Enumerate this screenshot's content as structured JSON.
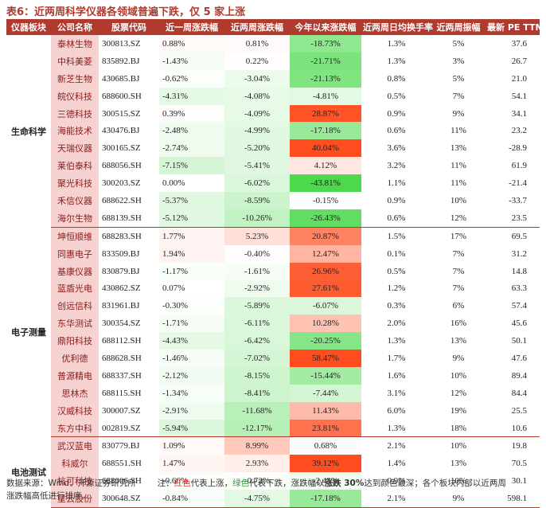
{
  "title": "表6：近两周科学仪器各领域普遍下跌，仅 5 家上涨",
  "headers": [
    "仪器板块",
    "公司名称",
    "股票代码",
    "近一周涨跌幅",
    "近两周涨跌幅",
    "今年以来涨跌幅",
    "近两周日均换手率",
    "近两周振幅",
    "最新 PE TTM"
  ],
  "colors": {
    "header_bg": "#b03a2e",
    "name_bg": "#f6d2d0",
    "up": "#ff4d1f",
    "down": "#4cd94c"
  },
  "groups": [
    {
      "sector": "生命科学",
      "rows": [
        [
          "泰林生物",
          "300813.SZ",
          "0.88%",
          "0.81%",
          "-18.73%",
          "1.3%",
          "5%",
          "37.6"
        ],
        [
          "中科美菱",
          "835892.BJ",
          "-1.43%",
          "0.22%",
          "-21.71%",
          "1.3%",
          "3%",
          "26.7"
        ],
        [
          "新芝生物",
          "430685.BJ",
          "-0.62%",
          "-3.04%",
          "-21.13%",
          "0.8%",
          "5%",
          "21.0"
        ],
        [
          "皖仪科技",
          "688600.SH",
          "-4.31%",
          "-4.08%",
          "-4.81%",
          "0.5%",
          "7%",
          "54.1"
        ],
        [
          "三德科技",
          "300515.SZ",
          "0.39%",
          "-4.09%",
          "28.87%",
          "0.9%",
          "9%",
          "34.1"
        ],
        [
          "海能技术",
          "430476.BJ",
          "-2.48%",
          "-4.99%",
          "-17.18%",
          "0.6%",
          "11%",
          "23.2"
        ],
        [
          "天瑞仪器",
          "300165.SZ",
          "-2.74%",
          "-5.20%",
          "40.04%",
          "3.6%",
          "13%",
          "-28.9"
        ],
        [
          "莱伯泰科",
          "688056.SH",
          "-7.15%",
          "-5.41%",
          "4.12%",
          "3.2%",
          "11%",
          "61.9"
        ],
        [
          "聚光科技",
          "300203.SZ",
          "0.00%",
          "-6.02%",
          "-43.81%",
          "1.1%",
          "11%",
          "-21.4"
        ],
        [
          "禾信仪器",
          "688622.SH",
          "-5.37%",
          "-8.59%",
          "-0.15%",
          "0.9%",
          "10%",
          "-33.7"
        ],
        [
          "海尔生物",
          "688139.SH",
          "-5.12%",
          "-10.26%",
          "-26.43%",
          "0.6%",
          "12%",
          "23.5"
        ]
      ]
    },
    {
      "sector": "电子测量",
      "rows": [
        [
          "坤恒顺维",
          "688283.SH",
          "1.77%",
          "5.23%",
          "20.87%",
          "1.5%",
          "17%",
          "69.5"
        ],
        [
          "同惠电子",
          "833509.BJ",
          "1.94%",
          "-0.40%",
          "12.47%",
          "0.1%",
          "7%",
          "31.2"
        ],
        [
          "基康仪器",
          "830879.BJ",
          "-1.17%",
          "-1.61%",
          "26.96%",
          "0.5%",
          "7%",
          "14.8"
        ],
        [
          "蓝盾光电",
          "430862.SZ",
          "0.07%",
          "-2.92%",
          "27.61%",
          "1.2%",
          "7%",
          "63.3"
        ],
        [
          "创远信科",
          "831961.BJ",
          "-0.30%",
          "-5.89%",
          "-6.07%",
          "0.3%",
          "6%",
          "57.4"
        ],
        [
          "东华测试",
          "300354.SZ",
          "-1.71%",
          "-6.11%",
          "10.28%",
          "2.0%",
          "16%",
          "45.6"
        ],
        [
          "鼎阳科技",
          "688112.SH",
          "-4.43%",
          "-6.42%",
          "-20.25%",
          "1.3%",
          "13%",
          "50.1"
        ],
        [
          "优利德",
          "688628.SH",
          "-1.46%",
          "-7.02%",
          "58.47%",
          "1.7%",
          "9%",
          "47.6"
        ],
        [
          "普源精电",
          "688337.SH",
          "-2.12%",
          "-8.15%",
          "-15.44%",
          "1.6%",
          "10%",
          "89.4"
        ],
        [
          "思林杰",
          "688115.SH",
          "-1.34%",
          "-8.41%",
          "-7.44%",
          "3.1%",
          "12%",
          "84.4"
        ],
        [
          "汉威科技",
          "300007.SZ",
          "-2.91%",
          "-11.68%",
          "11.43%",
          "6.0%",
          "19%",
          "25.5"
        ],
        [
          "东方中科",
          "002819.SZ",
          "-5.94%",
          "-12.17%",
          "23.81%",
          "1.3%",
          "18%",
          "10.6"
        ]
      ]
    },
    {
      "sector": "电池测试",
      "rows": [
        [
          "武汉蓝电",
          "830779.BJ",
          "1.09%",
          "8.99%",
          "0.68%",
          "2.1%",
          "10%",
          "19.8"
        ],
        [
          "科威尔",
          "688551.SH",
          "1.47%",
          "2.93%",
          "39.12%",
          "1.4%",
          "13%",
          "70.5"
        ],
        [
          "杭可科技",
          "688006.SH",
          "-0.66%",
          "-0.72%",
          "-2.43%",
          "0.9%",
          "10%",
          "30.1"
        ],
        [
          "星云股份",
          "300648.SZ",
          "-0.84%",
          "-4.75%",
          "-17.18%",
          "2.1%",
          "9%",
          "598.1"
        ]
      ]
    }
  ],
  "notes": {
    "source": "数据来源：Wind、开源证券研究所",
    "note_prefix": "注：",
    "red_word": "红色",
    "mid1": "代表上涨，",
    "green_word": "绿色",
    "mid2": "代表下跌，涨跌幅以",
    "bold_word": "涨跌 30%",
    "mid3": "达到颜色最深；各个板块内部以近两周",
    "line2": "涨跌幅高低进行排序。"
  }
}
